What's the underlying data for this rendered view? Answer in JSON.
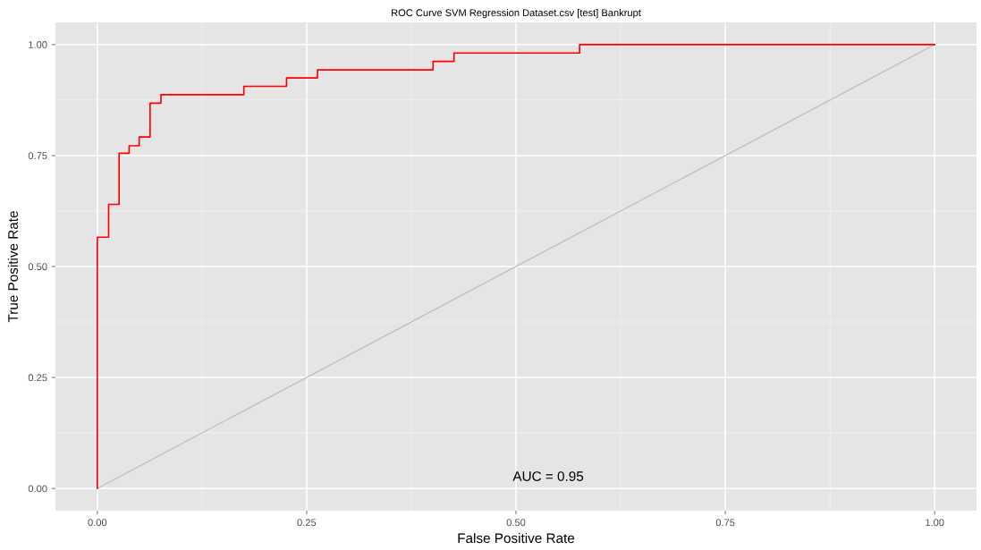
{
  "chart_data": {
    "type": "step",
    "title": "ROC Curve SVM Regression Dataset.csv [test] Bankrupt",
    "xlabel": "False Positive Rate",
    "ylabel": "True Positive Rate",
    "series": [
      {
        "color": "#ff0000",
        "x": [
          0,
          0,
          0.0135,
          0.026,
          0.038,
          0.05,
          0.063,
          0.076,
          0.175,
          0.226,
          0.263,
          0.401,
          0.426,
          0.576,
          1
        ],
        "values": [
          0,
          0.566,
          0.64,
          0.755,
          0.772,
          0.792,
          0.868,
          0.887,
          0.906,
          0.925,
          0.943,
          0.962,
          0.981,
          1,
          1
        ]
      },
      {
        "type": "line",
        "color": "#bebebe",
        "x": [
          0,
          1
        ],
        "values": [
          0,
          1
        ]
      }
    ],
    "annotations": [
      "AUC = 0.95"
    ],
    "xlim": [
      -0.05,
      1.05
    ],
    "ylim": [
      -0.05,
      1.05
    ],
    "xticks": [
      {
        "value": 0,
        "label": "0.00"
      },
      {
        "value": 0.25,
        "label": "0.25"
      },
      {
        "value": 0.5,
        "label": "0.50"
      },
      {
        "value": 0.75,
        "label": "0.75"
      },
      {
        "value": 1,
        "label": "1.00"
      }
    ],
    "yticks": [
      {
        "value": 0,
        "label": "0.00"
      },
      {
        "value": 0.25,
        "label": "0.25"
      },
      {
        "value": 0.5,
        "label": "0.50"
      },
      {
        "value": 0.75,
        "label": "0.75"
      },
      {
        "value": 1,
        "label": "1.00"
      }
    ],
    "grid": true
  }
}
